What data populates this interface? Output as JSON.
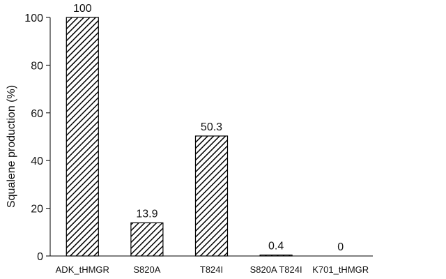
{
  "chart_data": {
    "type": "bar",
    "categories": [
      "ADK_tHMGR",
      "S820A",
      "T824I",
      "S820A_T824I",
      "K701_tHMGR"
    ],
    "category_labels": [
      "ADK_tHMGR",
      "S820A",
      "T824I",
      "S820A  T824I",
      "K701_tHMGR"
    ],
    "values": [
      100,
      13.9,
      50.3,
      0.4,
      0
    ],
    "data_labels": [
      "100",
      "13.9",
      "50.3",
      "0.4",
      "0"
    ],
    "title": "",
    "xlabel": "",
    "ylabel": "Squalene production (%)",
    "ylim": [
      0,
      100
    ],
    "yticks": [
      0,
      20,
      40,
      60,
      80,
      100
    ],
    "grid": false,
    "bar_fill": "hatched",
    "colors": {
      "bar_stroke": "#000000",
      "hatch": "#000000",
      "axis": "#000000",
      "background": "#ffffff"
    }
  }
}
